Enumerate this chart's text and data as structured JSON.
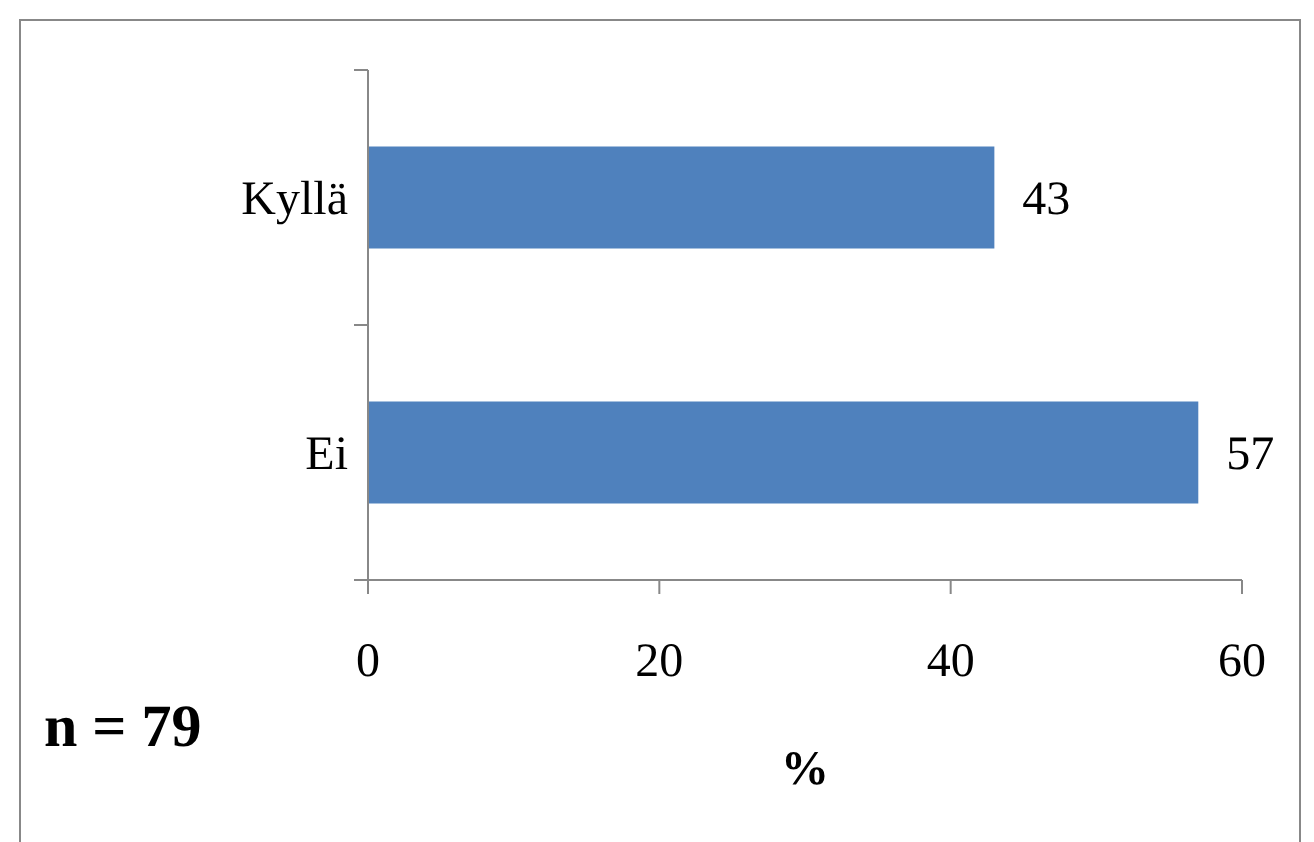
{
  "chart_data": {
    "type": "bar",
    "orientation": "horizontal",
    "categories": [
      "Kyllä",
      "Ei"
    ],
    "values": [
      43,
      57
    ],
    "color": "#4f81bd",
    "xlim": [
      0,
      60
    ],
    "xticks": [
      0,
      20,
      40,
      60
    ],
    "xlabel": "%",
    "data_labels": true,
    "annotations": [
      "n = 79"
    ]
  }
}
